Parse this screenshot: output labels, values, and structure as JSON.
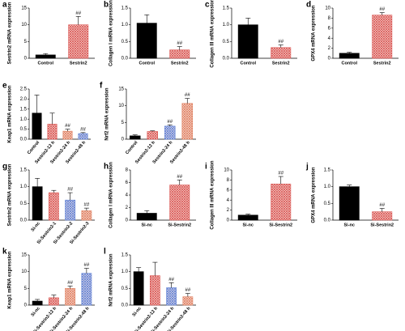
{
  "chart_data": [
    {
      "type": "bar",
      "label": "a",
      "ylabel": "Sestrin2 mRNA expression",
      "categories": [
        "Control",
        "Sestrin2"
      ],
      "values": [
        1,
        10
      ],
      "errors": [
        0.4,
        2.5
      ],
      "annotations": [
        null,
        "##"
      ],
      "colors": [
        "#000000",
        "#d9534f"
      ],
      "hatch": [
        false,
        true
      ],
      "ylim": [
        0,
        15
      ],
      "yticks": [
        0,
        5,
        10,
        15
      ]
    },
    {
      "type": "bar",
      "label": "b",
      "ylabel": "Collagen I mRNA expression",
      "categories": [
        "Control",
        "Sestrin2"
      ],
      "values": [
        1.05,
        0.25
      ],
      "errors": [
        0.25,
        0.1
      ],
      "annotations": [
        null,
        "##"
      ],
      "colors": [
        "#000000",
        "#d9534f"
      ],
      "hatch": [
        false,
        true
      ],
      "ylim": [
        0,
        1.5
      ],
      "yticks": [
        {
          "value": 0,
          "label": "0.0"
        },
        0.5,
        {
          "value": 1,
          "label": "1.0"
        },
        1.5
      ]
    },
    {
      "type": "bar",
      "label": "c",
      "ylabel": "Collagen III mRNA expression",
      "categories": [
        "Control",
        "Sestrin2"
      ],
      "values": [
        1.0,
        0.32
      ],
      "errors": [
        0.2,
        0.08
      ],
      "annotations": [
        null,
        "##"
      ],
      "colors": [
        "#000000",
        "#d9534f"
      ],
      "hatch": [
        false,
        true
      ],
      "ylim": [
        0,
        1.5
      ],
      "yticks": [
        {
          "value": 0,
          "label": "0.0"
        },
        0.5,
        {
          "value": 1,
          "label": "1.0"
        },
        1.5
      ]
    },
    {
      "type": "bar",
      "label": "d",
      "ylabel": "GPX4 mRNA expression",
      "categories": [
        "Control",
        "Sestrin2"
      ],
      "values": [
        1,
        8.6
      ],
      "errors": [
        0.2,
        0.5
      ],
      "annotations": [
        null,
        "##"
      ],
      "colors": [
        "#000000",
        "#d9534f"
      ],
      "hatch": [
        false,
        true
      ],
      "ylim": [
        0,
        10
      ],
      "yticks": [
        0,
        2,
        4,
        6,
        8,
        10
      ]
    },
    {
      "type": "bar",
      "label": "e",
      "ylabel": "Keap1 mRNA expression",
      "categories": [
        "Control",
        "Sestrin2-12 h",
        "Sestrin2-24 h",
        "Sestrin2-48 h"
      ],
      "values": [
        1.3,
        0.75,
        0.4,
        0.28
      ],
      "errors": [
        0.9,
        0.55,
        0.1,
        0.05
      ],
      "annotations": [
        null,
        null,
        "##",
        "##"
      ],
      "colors": [
        "#000000",
        "#d9534f",
        "#e08060",
        "#5b7fd6"
      ],
      "hatch": [
        false,
        true,
        true,
        true
      ],
      "ylim": [
        0,
        2.5
      ],
      "yticks": [
        {
          "value": 0,
          "label": "0.0"
        },
        0.5,
        {
          "value": 1,
          "label": "1.0"
        },
        1.5,
        {
          "value": 2,
          "label": "2.0"
        },
        2.5
      ]
    },
    {
      "type": "bar",
      "label": "f",
      "ylabel": "Nrf2 mRNA expression",
      "categories": [
        "Control",
        "Sestrin2-12 h",
        "Sestrin2-24 h",
        "Sestrin2-48 h"
      ],
      "values": [
        1,
        2.3,
        3.9,
        10.7
      ],
      "errors": [
        0.3,
        0.2,
        0.4,
        1.5
      ],
      "annotations": [
        null,
        null,
        "##",
        "##"
      ],
      "colors": [
        "#000000",
        "#d9534f",
        "#5b7fd6",
        "#e08060"
      ],
      "hatch": [
        false,
        true,
        true,
        true
      ],
      "ylim": [
        0,
        15
      ],
      "yticks": [
        0,
        5,
        10,
        15
      ]
    },
    {
      "type": "bar",
      "label": "g",
      "ylabel": "Sestrin2 mRNA expression",
      "categories": [
        "Si-nc",
        "Si-Sestrin2-1",
        "Si-Sestrin2-2",
        "Si-Sestrin2-3"
      ],
      "values": [
        1.0,
        0.82,
        0.6,
        0.28
      ],
      "errors": [
        0.25,
        0.07,
        0.22,
        0.08
      ],
      "annotations": [
        null,
        null,
        "##",
        "##"
      ],
      "colors": [
        "#000000",
        "#d9534f",
        "#5b7fd6",
        "#e08060"
      ],
      "hatch": [
        false,
        true,
        true,
        true
      ],
      "ylim": [
        0,
        1.5
      ],
      "yticks": [
        {
          "value": 0,
          "label": "0.0"
        },
        0.5,
        {
          "value": 1,
          "label": "1.0"
        },
        1.5
      ]
    },
    {
      "type": "bar",
      "label": "h",
      "ylabel": "Collagen I mRNA expression",
      "categories": [
        "Si-nc",
        "Si-Sestrin2"
      ],
      "values": [
        1.1,
        5.6
      ],
      "errors": [
        0.4,
        0.8
      ],
      "annotations": [
        null,
        "##"
      ],
      "colors": [
        "#000000",
        "#d9534f"
      ],
      "hatch": [
        false,
        true
      ],
      "ylim": [
        0,
        8
      ],
      "yticks": [
        0,
        2,
        4,
        6,
        8
      ]
    },
    {
      "type": "bar",
      "label": "i",
      "ylabel": "Collagen III mRNA expression",
      "categories": [
        "Si-nc",
        "Si-Sestrin2"
      ],
      "values": [
        1,
        7.2
      ],
      "errors": [
        0.2,
        1.5
      ],
      "annotations": [
        null,
        "##"
      ],
      "colors": [
        "#000000",
        "#d9534f"
      ],
      "hatch": [
        false,
        true
      ],
      "ylim": [
        0,
        10
      ],
      "yticks": [
        0,
        2,
        4,
        6,
        8,
        10
      ]
    },
    {
      "type": "bar",
      "label": "j",
      "ylabel": "GPX4 mRNA expression",
      "categories": [
        "Si-nc",
        "Si-Sestrin2"
      ],
      "values": [
        1.0,
        0.25
      ],
      "errors": [
        0.05,
        0.1
      ],
      "annotations": [
        null,
        "##"
      ],
      "colors": [
        "#000000",
        "#d9534f"
      ],
      "hatch": [
        false,
        true
      ],
      "ylim": [
        0,
        1.5
      ],
      "yticks": [
        {
          "value": 0,
          "label": "0.0"
        },
        0.5,
        {
          "value": 1,
          "label": "1.0"
        },
        1.5
      ]
    },
    {
      "type": "bar",
      "label": "k",
      "ylabel": "Keap1 mRNA expression",
      "categories": [
        "Si-nc",
        "Si-Sestrin2-12 h",
        "Si-Sestrin2-24 h",
        "Si-Sestrin2-48 h"
      ],
      "values": [
        1.2,
        2.2,
        5.0,
        9.5
      ],
      "errors": [
        0.5,
        0.8,
        0.7,
        1.5
      ],
      "annotations": [
        null,
        null,
        "##",
        "##"
      ],
      "colors": [
        "#000000",
        "#d9534f",
        "#e08060",
        "#5b7fd6"
      ],
      "hatch": [
        false,
        true,
        true,
        true
      ],
      "ylim": [
        0,
        15
      ],
      "yticks": [
        0,
        5,
        10,
        15
      ]
    },
    {
      "type": "bar",
      "label": "l",
      "ylabel": "Nrf2 mRNA expression",
      "categories": [
        "Si-nc",
        "Si-Sestrin2-12 h",
        "Si-Sestrin2-24 h",
        "Si-Sestrin2-48 h"
      ],
      "values": [
        1.0,
        0.88,
        0.52,
        0.25
      ],
      "errors": [
        0.12,
        0.4,
        0.15,
        0.1
      ],
      "annotations": [
        null,
        null,
        "##",
        "##"
      ],
      "colors": [
        "#000000",
        "#d9534f",
        "#5b7fd6",
        "#e08060"
      ],
      "hatch": [
        false,
        true,
        true,
        true
      ],
      "ylim": [
        0,
        1.5
      ],
      "yticks": [
        {
          "value": 0,
          "label": "0.0"
        },
        0.5,
        {
          "value": 1,
          "label": "1.0"
        },
        1.5
      ]
    }
  ]
}
